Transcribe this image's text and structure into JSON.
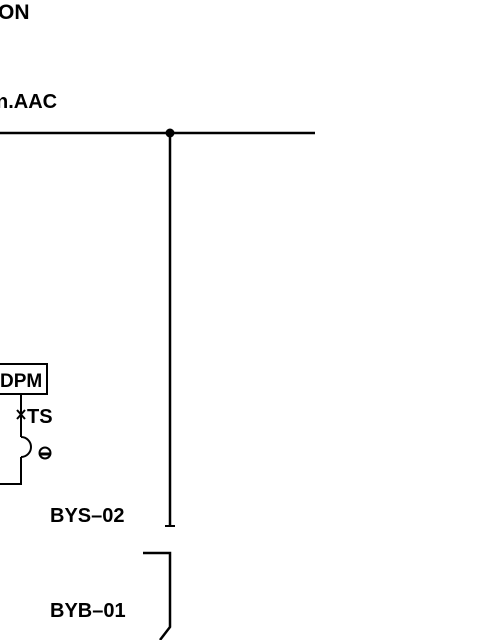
{
  "labels": {
    "top_partial": "ON",
    "bus_partial": "n.AAC",
    "meter_box": "DPM",
    "test_switch": "TS",
    "feeder_upper": "BYS–02",
    "feeder_lower": "BYB–01"
  },
  "colors": {
    "line": "#000000",
    "background": "#ffffff"
  }
}
